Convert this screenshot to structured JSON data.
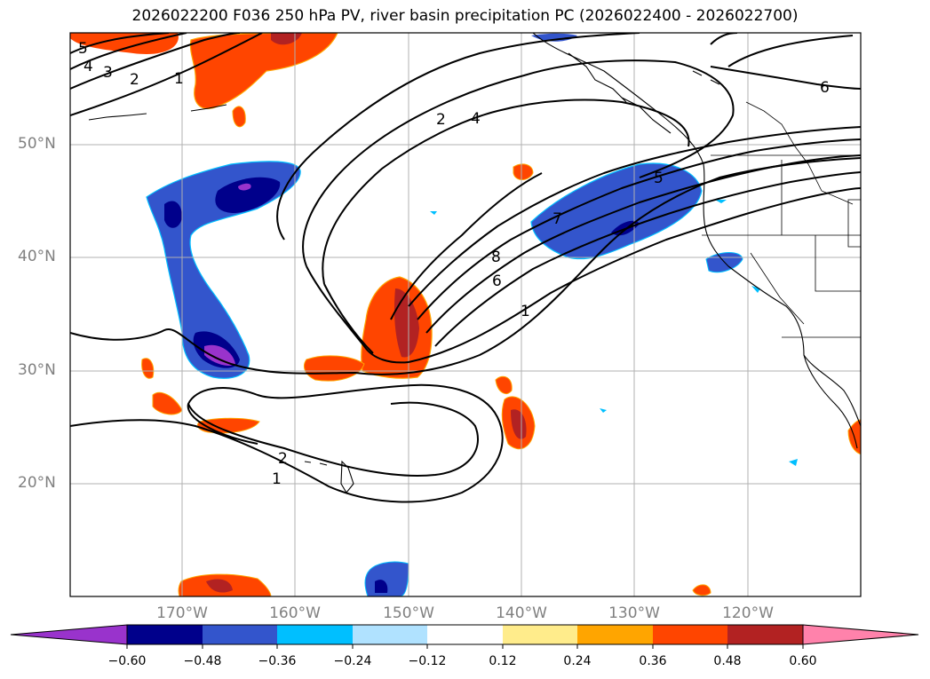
{
  "title": "2026022200 F036 250 hPa PV, river basin precipitation PC (2026022400 - 2026022700)",
  "lat_labels": [
    "50°N",
    "40°N",
    "30°N",
    "20°N"
  ],
  "lon_labels": [
    "170°W",
    "160°W",
    "150°W",
    "140°W",
    "130°W",
    "120°W"
  ],
  "colorbar": {
    "ticks": [
      "−0.60",
      "−0.48",
      "−0.36",
      "−0.24",
      "−0.12",
      "0.12",
      "0.24",
      "0.36",
      "0.48",
      "0.60"
    ],
    "colors": [
      "#9933cc",
      "#00008b",
      "#3355cc",
      "#00bfff",
      "#b0e2ff",
      "#ffffff",
      "#ffec8b",
      "#ffa500",
      "#ff4500",
      "#b22222",
      "#ff82ab"
    ]
  },
  "contour_labels": [
    "5",
    "4",
    "3",
    "2",
    "1",
    "6",
    "2",
    "4",
    "8",
    "6",
    "1",
    "7",
    "5",
    "2",
    "1"
  ]
}
